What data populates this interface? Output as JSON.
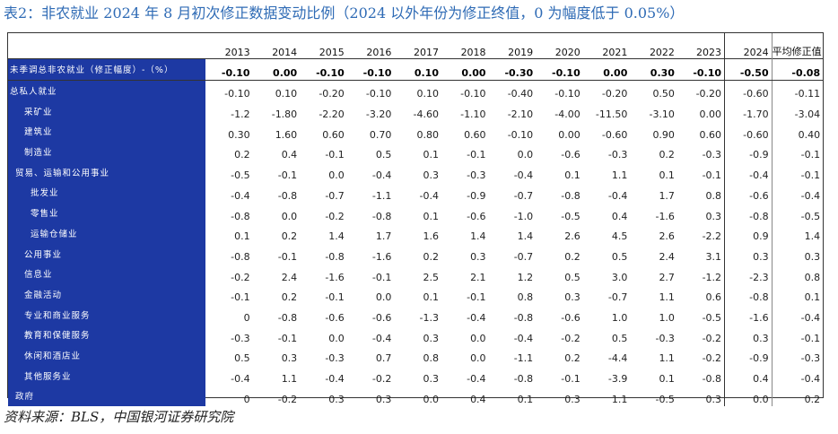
{
  "caption": "表2：非农就业 2024 年 8 月初次修正数据变动比例（2024 以外年份为修正终值，0 为幅度低于 0.05%）",
  "source": "资料来源：BLS，中国银河证券研究院",
  "table": {
    "headers": [
      "2013",
      "2014",
      "2015",
      "2016",
      "2017",
      "2018",
      "2019",
      "2020",
      "2021",
      "2022",
      "2023",
      "2024",
      "平均修正值"
    ],
    "rows": [
      {
        "label": "未季调总非农就业（修正幅度）-（%）",
        "values": [
          "-0.10",
          "0.00",
          "-0.10",
          "-0.10",
          "0.10",
          "0.00",
          "-0.30",
          "-0.10",
          "0.00",
          "0.30",
          "-0.10",
          "-0.50",
          "-0.08"
        ]
      },
      {
        "label": "总私人就业",
        "values": [
          "-0.10",
          "0.10",
          "-0.20",
          "-0.10",
          "0.10",
          "-0.10",
          "-0.40",
          "-0.10",
          "-0.20",
          "0.50",
          "-0.20",
          "-0.60",
          "-0.11"
        ]
      },
      {
        "label": "采矿业",
        "values": [
          "-1.2",
          "-1.80",
          "-2.20",
          "-3.20",
          "-4.60",
          "-1.10",
          "-2.10",
          "-4.00",
          "-11.50",
          "-3.10",
          "0.00",
          "-1.70",
          "-3.04"
        ]
      },
      {
        "label": "建筑业",
        "values": [
          "0.30",
          "1.60",
          "0.60",
          "0.70",
          "0.80",
          "0.60",
          "-0.10",
          "0.00",
          "-0.60",
          "0.90",
          "0.60",
          "-0.60",
          "0.40"
        ]
      },
      {
        "label": "制造业",
        "values": [
          "0.2",
          "0.4",
          "-0.1",
          "0.5",
          "0.1",
          "-0.1",
          "0.0",
          "-0.6",
          "-0.3",
          "0.2",
          "-0.3",
          "-0.9",
          "-0.1"
        ]
      },
      {
        "label": "贸易、运输和公用事业",
        "values": [
          "-0.5",
          "-0.1",
          "0.0",
          "-0.4",
          "0.3",
          "-0.3",
          "-0.4",
          "0.1",
          "1.1",
          "0.1",
          "-0.1",
          "-0.4",
          "-0.1"
        ]
      },
      {
        "label": "批发业",
        "values": [
          "-0.4",
          "-0.8",
          "-0.7",
          "-1.1",
          "-0.4",
          "-0.9",
          "-0.7",
          "-0.8",
          "-0.4",
          "1.7",
          "0.8",
          "-0.6",
          "-0.4"
        ]
      },
      {
        "label": "零售业",
        "values": [
          "-0.8",
          "0.0",
          "-0.2",
          "-0.8",
          "0.1",
          "-0.6",
          "-1.0",
          "-0.5",
          "0.4",
          "-1.6",
          "0.3",
          "-0.8",
          "-0.5"
        ]
      },
      {
        "label": "运输仓储业",
        "values": [
          "0.1",
          "0.2",
          "1.4",
          "1.7",
          "1.6",
          "1.4",
          "1.4",
          "2.6",
          "4.5",
          "2.6",
          "-2.2",
          "0.9",
          "1.4"
        ]
      },
      {
        "label": "公用事业",
        "values": [
          "-0.8",
          "-0.1",
          "-0.8",
          "-1.6",
          "0.2",
          "0.3",
          "-0.7",
          "0.2",
          "0.5",
          "2.4",
          "3.1",
          "0.3",
          "0.3"
        ]
      },
      {
        "label": "信息业",
        "values": [
          "-0.2",
          "2.4",
          "-1.6",
          "-0.1",
          "2.5",
          "2.1",
          "1.2",
          "0.5",
          "3.0",
          "2.7",
          "-1.2",
          "-2.3",
          "0.8"
        ]
      },
      {
        "label": "金融活动",
        "values": [
          "-0.1",
          "0.2",
          "-0.1",
          "0.0",
          "0.1",
          "-0.1",
          "0.8",
          "0.3",
          "-0.7",
          "1.1",
          "0.6",
          "-0.8",
          "0.1"
        ]
      },
      {
        "label": "专业和商业服务",
        "values": [
          "0",
          "-0.8",
          "-0.6",
          "-0.6",
          "-1.3",
          "-0.4",
          "-0.8",
          "-0.6",
          "1.0",
          "1.0",
          "-0.5",
          "-1.6",
          "-0.4"
        ]
      },
      {
        "label": "教育和保健服务",
        "values": [
          "-0.3",
          "-0.1",
          "0.0",
          "-0.4",
          "0.3",
          "0.0",
          "-0.4",
          "-0.2",
          "0.5",
          "-0.3",
          "-0.2",
          "0.3",
          "-0.1"
        ]
      },
      {
        "label": "休闲和酒店业",
        "values": [
          "0.5",
          "0.3",
          "-0.3",
          "0.7",
          "0.8",
          "0.0",
          "-1.1",
          "0.2",
          "-4.4",
          "1.1",
          "-0.2",
          "-0.9",
          "-0.3"
        ]
      },
      {
        "label": "其他服务业",
        "values": [
          "-0.4",
          "1.1",
          "-0.4",
          "-0.2",
          "0.3",
          "-0.4",
          "-0.8",
          "-0.1",
          "-3.9",
          "0.1",
          "-0.8",
          "0.4",
          "-0.4"
        ]
      },
      {
        "label": "政府",
        "values": [
          "0",
          "-0.2",
          "0.3",
          "0.3",
          "0.0",
          "0.4",
          "0.1",
          "0.3",
          "1.1",
          "-0.5",
          "0.3",
          "0.0",
          "0.2"
        ]
      }
    ]
  }
}
